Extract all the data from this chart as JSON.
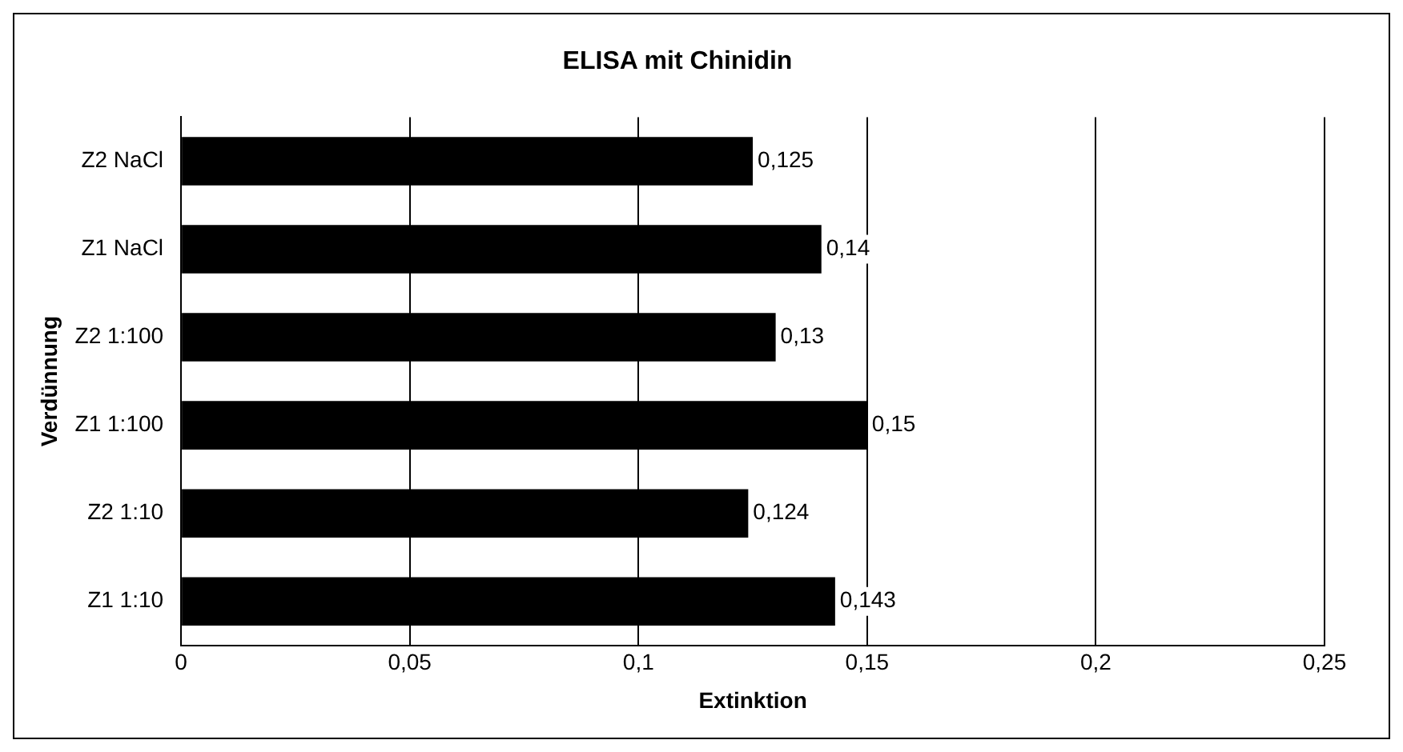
{
  "chart_data": {
    "type": "bar",
    "orientation": "horizontal",
    "title": "ELISA mit Chinidin",
    "xlabel": "Extinktion",
    "ylabel": "Verdünnung",
    "categories": [
      "Z2 NaCl",
      "Z1 NaCl",
      "Z2 1:100",
      "Z1 1:100",
      "Z2 1:10",
      "Z1 1:10"
    ],
    "values": [
      0.125,
      0.14,
      0.13,
      0.15,
      0.124,
      0.143
    ],
    "color": "#000000",
    "xlim": [
      0,
      0.25
    ],
    "xticks": [
      0,
      {
        "value": 0.05,
        "label": "0,05"
      },
      {
        "value": 0.1,
        "label": "0,1"
      },
      {
        "value": 0.15,
        "label": "0,15"
      },
      {
        "value": 0.2,
        "label": "0,2"
      },
      {
        "value": 0.25,
        "label": "0,25"
      }
    ],
    "value_labels": [
      "0,125",
      "0,14",
      "0,13",
      "0,15",
      "0,124",
      "0,143"
    ],
    "grid": "x",
    "legend": false
  }
}
